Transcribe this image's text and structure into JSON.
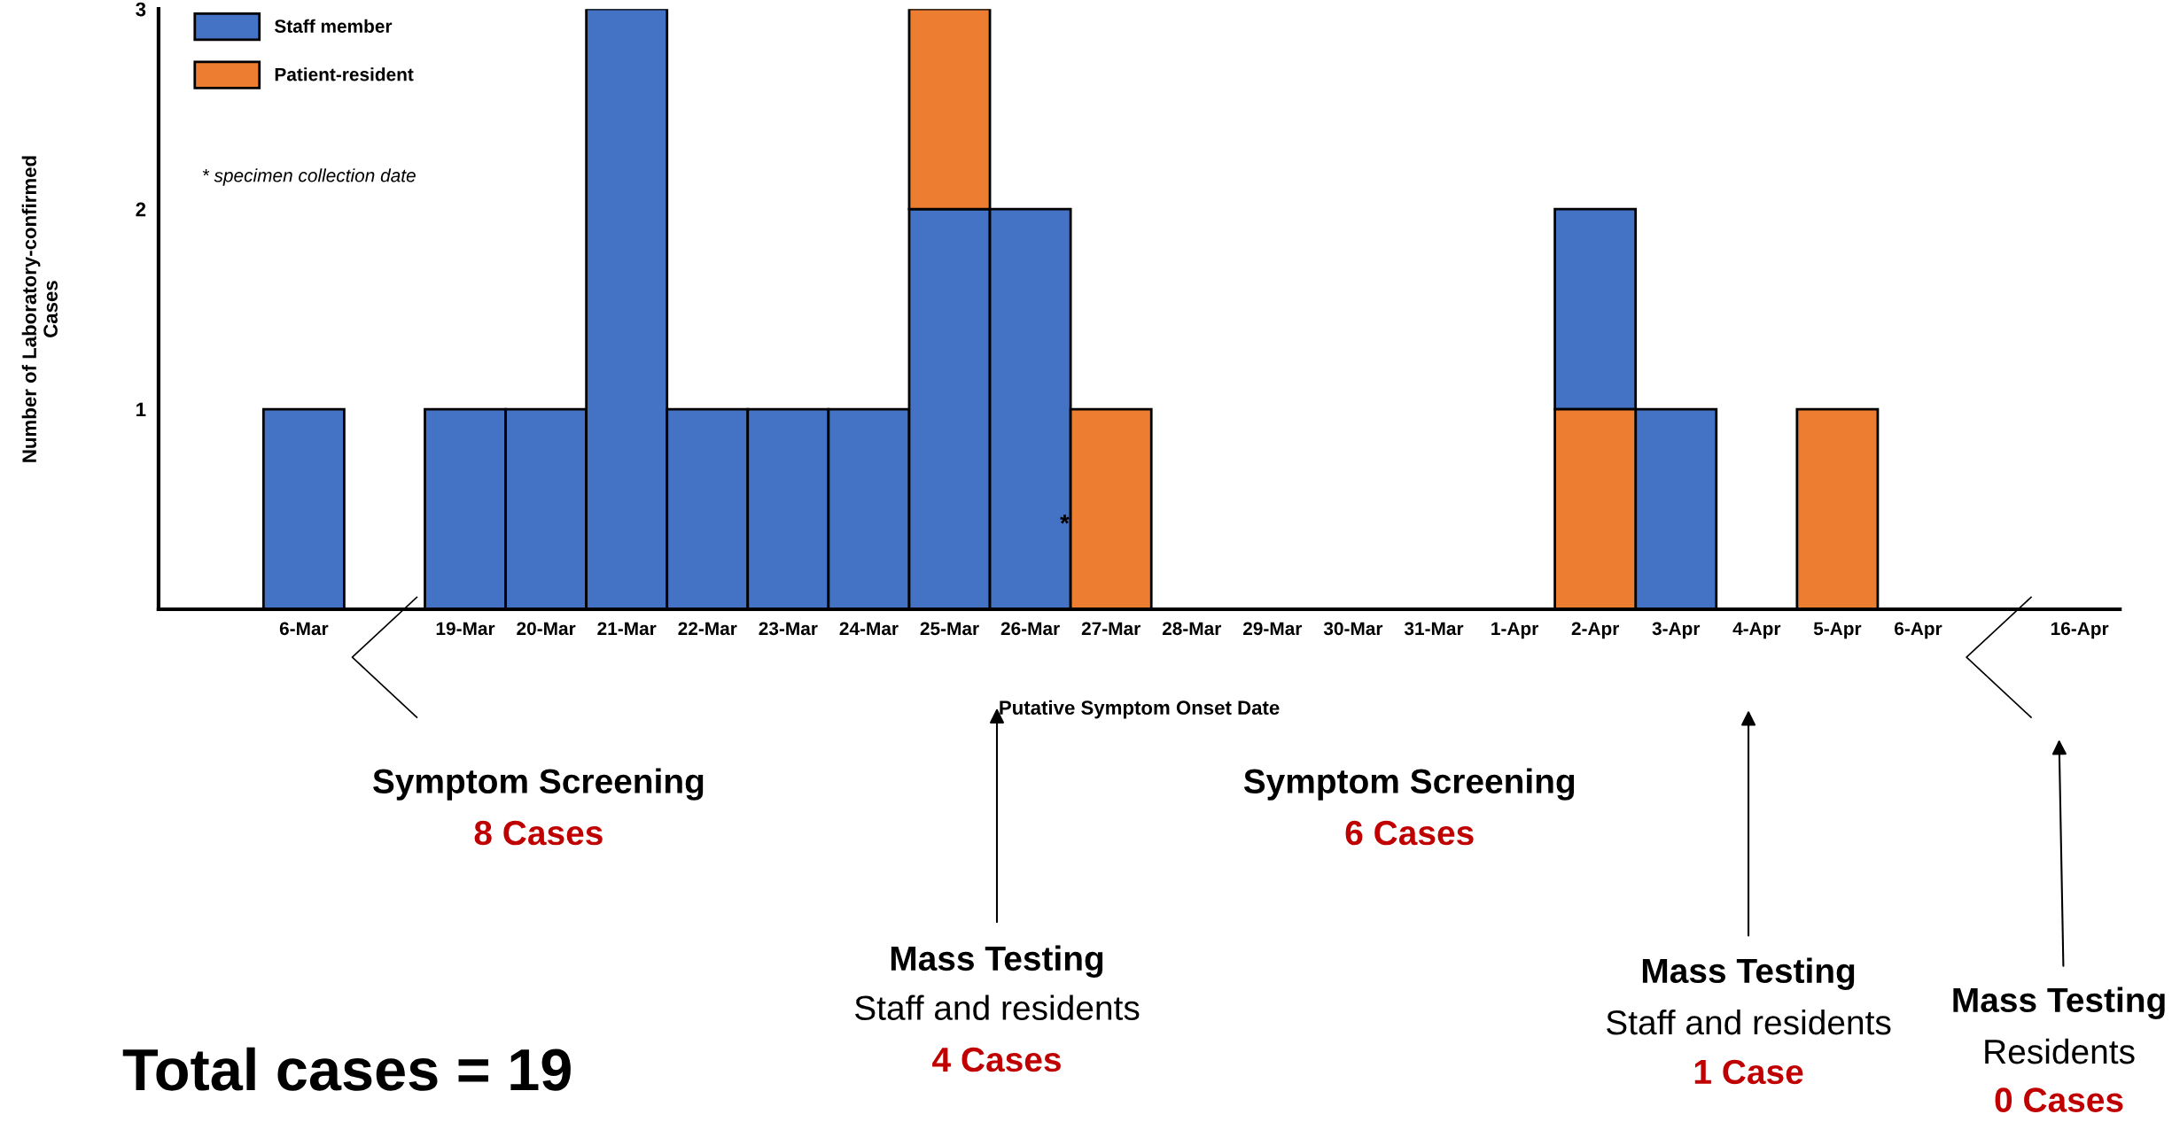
{
  "chart_data": {
    "type": "bar",
    "xlabel": "Putative Symptom Onset Date",
    "ylabel": "Number of Laboratory-confirmed\nCases",
    "categories": [
      "6-Mar",
      null,
      "19-Mar",
      "20-Mar",
      "21-Mar",
      "22-Mar",
      "23-Mar",
      "24-Mar",
      "25-Mar",
      "26-Mar",
      "27-Mar",
      "28-Mar",
      "29-Mar",
      "30-Mar",
      "31-Mar",
      "1-Apr",
      "2-Apr",
      "3-Apr",
      "4-Apr",
      "5-Apr",
      "6-Apr",
      null,
      "16-Apr"
    ],
    "series": [
      {
        "name": "Staff member",
        "color": "#4472c4",
        "values": [
          1,
          null,
          1,
          1,
          3,
          1,
          1,
          1,
          2,
          2,
          null,
          null,
          null,
          null,
          null,
          null,
          1,
          1,
          null,
          null,
          null,
          null,
          null
        ],
        "base": [
          0,
          null,
          0,
          0,
          0,
          0,
          0,
          0,
          0,
          0,
          null,
          null,
          null,
          null,
          null,
          null,
          1,
          0,
          null,
          null,
          null,
          null,
          null
        ]
      },
      {
        "name": "Patient-resident",
        "color": "#ed7d31",
        "values": [
          null,
          null,
          null,
          null,
          null,
          null,
          null,
          null,
          1,
          null,
          1,
          null,
          null,
          null,
          null,
          null,
          1,
          null,
          null,
          1,
          null,
          null,
          null
        ],
        "base": [
          null,
          null,
          null,
          null,
          null,
          null,
          null,
          null,
          2,
          null,
          0,
          null,
          null,
          null,
          null,
          null,
          0,
          null,
          null,
          0,
          null,
          null,
          null
        ]
      }
    ],
    "ylim": [
      0,
      3
    ],
    "yticks": [
      1,
      2,
      3
    ],
    "grid": false,
    "legend": "top left",
    "annotations": [
      "* specimen collection date",
      "*",
      "Symptom Screening",
      "8 Cases",
      "Symptom Screening",
      "6 Cases",
      "Mass Testing",
      "Staff and residents",
      "4 Cases",
      "Mass Testing",
      "Staff and residents",
      "1 Case",
      "Mass Testing",
      "Residents",
      "0 Cases",
      "Total cases = 19"
    ]
  }
}
